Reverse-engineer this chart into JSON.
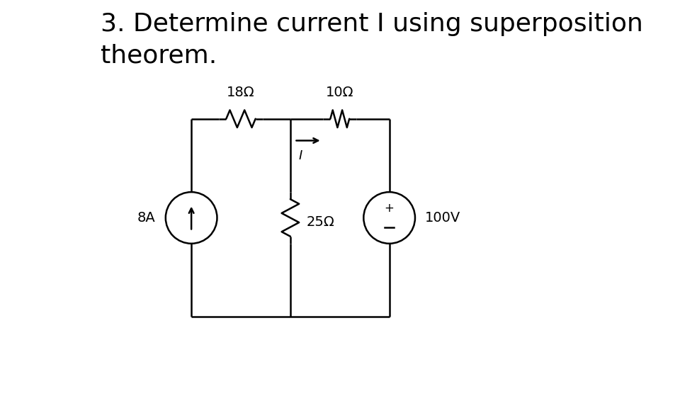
{
  "title": "3. Determine current I using superposition\ntheorem.",
  "title_fontsize": 26,
  "bg_color": "#ffffff",
  "line_color": "#000000",
  "lw": 1.8,
  "circuit": {
    "L": 0.27,
    "M": 0.52,
    "R": 0.77,
    "T": 0.7,
    "B": 0.2,
    "cs_r": 0.065,
    "vs_r": 0.065,
    "r1_label": "18Ω",
    "r2_label": "10Ω",
    "r3_label": "25Ω",
    "cs_label": "8A",
    "vs_label": "100V",
    "I_label": "I"
  }
}
